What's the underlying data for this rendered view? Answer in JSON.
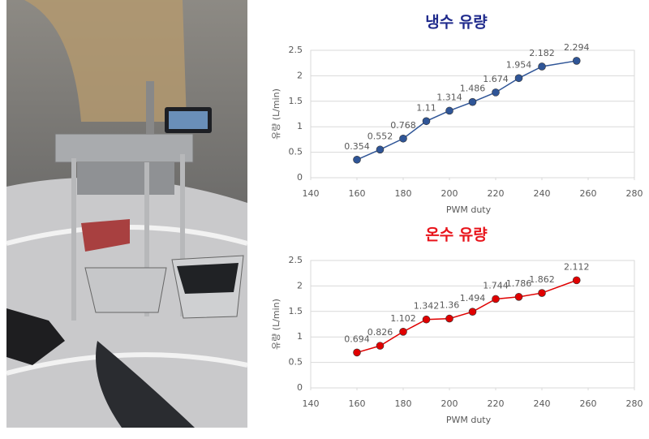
{
  "chart_data": [
    {
      "type": "line",
      "title": "냉수 유량",
      "title_color": "#1f2a8c",
      "xlabel": "PWM duty",
      "ylabel": "유량 (L/min)",
      "x": [
        160,
        170,
        180,
        190,
        200,
        210,
        220,
        230,
        240,
        255
      ],
      "values": [
        0.354,
        0.552,
        0.768,
        1.11,
        1.314,
        1.486,
        1.674,
        1.954,
        2.182,
        2.294
      ],
      "color": "#2f5597",
      "xlim": [
        140,
        280
      ],
      "xticks": [
        140,
        160,
        180,
        200,
        220,
        240,
        260,
        280
      ],
      "ylim": [
        0,
        2.5
      ],
      "yticks": [
        0,
        0.5,
        1,
        1.5,
        2,
        2.5
      ],
      "grid": true
    },
    {
      "type": "line",
      "title": "온수 유량",
      "title_color": "#e8141b",
      "xlabel": "PWM duty",
      "ylabel": "유량 (L/min)",
      "x": [
        160,
        170,
        180,
        190,
        200,
        210,
        220,
        230,
        240,
        255
      ],
      "values": [
        0.694,
        0.826,
        1.102,
        1.342,
        1.36,
        1.494,
        1.744,
        1.786,
        1.862,
        2.112
      ],
      "color": "#e00000",
      "xlim": [
        140,
        280
      ],
      "xticks": [
        140,
        160,
        180,
        200,
        220,
        240,
        260,
        280
      ],
      "ylim": [
        0,
        2.5
      ],
      "yticks": [
        0,
        0.5,
        1,
        1.5,
        2,
        2.5
      ],
      "grid": true
    }
  ]
}
